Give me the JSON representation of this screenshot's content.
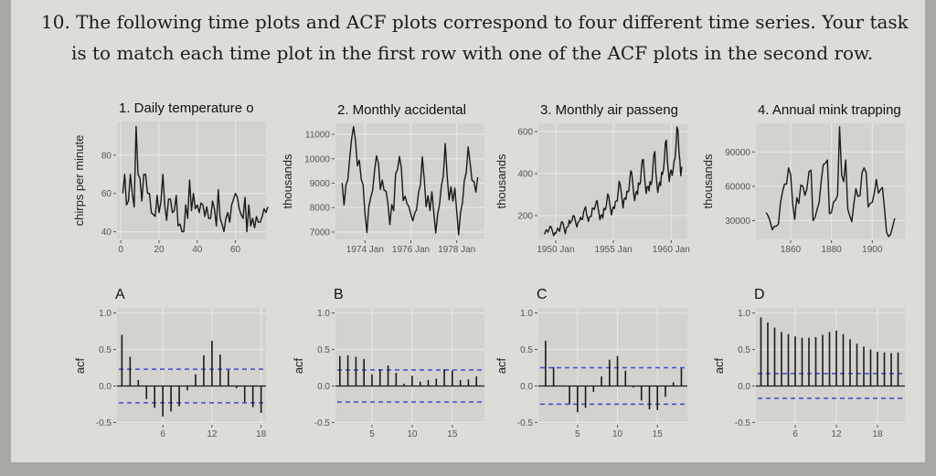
{
  "question": {
    "line1": "10. The following time plots and ACF plots correspond to four different time series. Your task",
    "line2": "is to match each time plot in the first row with one of the ACF plots in the second row."
  },
  "colors": {
    "panel": "#d3d2cd",
    "grid": "#e6e5e1",
    "line": "#1a1a1a",
    "ci": "#3b49d6"
  },
  "chart_data": [
    {
      "type": "line",
      "title": "1. Daily temperature o",
      "ylabel": "chirps per minute",
      "start": 1,
      "frequency": 1,
      "xlim": [
        -2,
        76
      ],
      "ylim": [
        36,
        97.6
      ],
      "xticks": [
        "0",
        "20",
        "40",
        "60"
      ],
      "yticks": [
        40,
        60,
        80
      ],
      "ytick_labels": [
        "40",
        "60",
        "80"
      ],
      "values": [
        60,
        70,
        54,
        56,
        70,
        60,
        53,
        95,
        70,
        68,
        56,
        70,
        70,
        60,
        60,
        50,
        49,
        48,
        59,
        50,
        56,
        70,
        54,
        46,
        57,
        57,
        50,
        51,
        59,
        43,
        44,
        40,
        40,
        54,
        47,
        67,
        51,
        60,
        52,
        54,
        50,
        55,
        54,
        48,
        53,
        47,
        47,
        56,
        52,
        43,
        62,
        47,
        44,
        40,
        47,
        50,
        45,
        54,
        57,
        60,
        58,
        52,
        49,
        47,
        58,
        40,
        54,
        43,
        47,
        42,
        48,
        45,
        45,
        48,
        52,
        50,
        53
      ]
    },
    {
      "type": "line",
      "title": "2. Monthly accidental",
      "ylabel": "thousands",
      "start": 1973,
      "frequency": 12,
      "xlim": [
        1972.71,
        1979.21
      ],
      "ylim": [
        6700,
        11450
      ],
      "xticks": [
        "1974 Jan",
        "1976 Jan",
        "1978 Jan"
      ],
      "yticks": [
        7000,
        8000,
        9000,
        10000,
        11000
      ],
      "ytick_labels": [
        "7000",
        "8000",
        "9000",
        "10000",
        "11000"
      ],
      "values": [
        9007,
        8106,
        8928,
        9137,
        10017,
        10826,
        11317,
        10744,
        9713,
        9938,
        9161,
        8927,
        7750,
        6981,
        8038,
        8422,
        8714,
        9512,
        10120,
        9823,
        8743,
        9129,
        8710,
        8680,
        8162,
        7306,
        8124,
        7870,
        9387,
        9556,
        10093,
        9620,
        8285,
        8466,
        8160,
        8034,
        7717,
        7461,
        7767,
        7925,
        8623,
        8945,
        10078,
        9179,
        8037,
        8488,
        7874,
        8647,
        7792,
        6957,
        7726,
        8106,
        8890,
        9299,
        10625,
        9302,
        8314,
        8850,
        8265,
        8796,
        7836,
        6892,
        7791,
        8192,
        9115,
        9434,
        10484,
        9827,
        9110,
        9070,
        8633,
        9240
      ]
    },
    {
      "type": "line",
      "title": "3. Monthly air passeng",
      "ylabel": "thousands",
      "start": 1949,
      "frequency": 12,
      "xlim": [
        1948.5,
        1961.4
      ],
      "ylim": [
        87,
        639
      ],
      "xticks": [
        "1950 Jan",
        "1955 Jan",
        "1960 Jan"
      ],
      "yticks": [
        200,
        400,
        600
      ],
      "ytick_labels": [
        "200",
        "400",
        "600"
      ],
      "values": [
        112,
        118,
        132,
        129,
        121,
        135,
        148,
        148,
        136,
        119,
        104,
        118,
        115,
        126,
        141,
        135,
        125,
        149,
        170,
        170,
        158,
        133,
        114,
        140,
        145,
        150,
        178,
        163,
        172,
        178,
        199,
        199,
        184,
        162,
        146,
        166,
        171,
        180,
        193,
        181,
        183,
        218,
        230,
        242,
        209,
        191,
        172,
        194,
        196,
        196,
        236,
        235,
        229,
        243,
        264,
        272,
        237,
        211,
        180,
        201,
        204,
        188,
        235,
        227,
        234,
        264,
        302,
        293,
        259,
        229,
        203,
        229,
        242,
        233,
        267,
        269,
        270,
        315,
        364,
        347,
        312,
        274,
        237,
        278,
        284,
        277,
        317,
        313,
        318,
        374,
        413,
        405,
        355,
        306,
        271,
        306,
        315,
        301,
        356,
        348,
        355,
        422,
        465,
        467,
        404,
        347,
        305,
        336,
        340,
        318,
        362,
        348,
        363,
        435,
        491,
        505,
        404,
        359,
        310,
        337,
        360,
        342,
        406,
        396,
        420,
        472,
        548,
        559,
        463,
        407,
        362,
        405,
        417,
        391,
        419,
        461,
        472,
        535,
        622,
        606,
        508,
        461,
        390,
        432
      ]
    },
    {
      "type": "line",
      "title": "4. Annual mink trapping",
      "ylabel": "thousands",
      "start": 1848,
      "frequency": 1,
      "xlim": [
        1843,
        1916
      ],
      "ylim": [
        13600,
        115000
      ],
      "xticks": [
        "1860",
        "1880",
        "1900"
      ],
      "yticks": [
        30000,
        60000,
        90000
      ],
      "ytick_labels": [
        "30000",
        "60000",
        "90000"
      ],
      "values": [
        37000,
        34000,
        29000,
        22000,
        25000,
        25000,
        27000,
        45000,
        55000,
        62000,
        62000,
        76000,
        70000,
        45000,
        31000,
        50000,
        45000,
        61000,
        60000,
        52000,
        58000,
        73000,
        74000,
        30000,
        33000,
        40000,
        46000,
        65000,
        79000,
        80000,
        83000,
        36000,
        37000,
        46000,
        48000,
        52000,
        112000,
        70000,
        64000,
        83000,
        40000,
        34000,
        29000,
        45000,
        58000,
        51000,
        52000,
        72000,
        76000,
        72000,
        42000,
        45000,
        46000,
        54000,
        66000,
        54000,
        57000,
        59000,
        40000,
        20000,
        16000,
        18000,
        25000,
        32000
      ]
    },
    {
      "type": "bar",
      "title": "A",
      "ylabel": "acf",
      "xlim": [
        0.4,
        18.6
      ],
      "ylim": [
        -0.52,
        1.07
      ],
      "xticks": [
        "6",
        "12",
        "18"
      ],
      "yticks": [
        -0.5,
        0,
        0.5,
        1
      ],
      "ytick_labels": [
        "-0.5",
        "0.0",
        "0.5",
        "1.0"
      ],
      "ci": 0.23,
      "values": [
        0.7,
        0.4,
        0.08,
        -0.18,
        -0.3,
        -0.42,
        -0.35,
        -0.28,
        -0.06,
        0.16,
        0.42,
        0.62,
        0.43,
        0.22,
        -0.03,
        -0.22,
        -0.29,
        -0.37
      ]
    },
    {
      "type": "bar",
      "title": "B",
      "ylabel": "acf",
      "xlim": [
        0.45,
        19
      ],
      "ylim": [
        -0.52,
        1.07
      ],
      "xticks": [
        "5",
        "10",
        "15"
      ],
      "yticks": [
        -0.5,
        0,
        0.5,
        1
      ],
      "ytick_labels": [
        "-0.5",
        "0.0",
        "0.5",
        "1.0"
      ],
      "ci": 0.22,
      "values": [
        0.41,
        0.42,
        0.4,
        0.37,
        0.16,
        0.23,
        0.28,
        0.18,
        0.03,
        0.14,
        0.06,
        0.08,
        0.1,
        0.23,
        0.21,
        0.08,
        0.09,
        0.13
      ]
    },
    {
      "type": "bar",
      "title": "C",
      "ylabel": "acf",
      "xlim": [
        0.1,
        18.75
      ],
      "ylim": [
        -0.52,
        1.07
      ],
      "xticks": [
        "5",
        "10",
        "15"
      ],
      "yticks": [
        -0.5,
        0,
        0.5,
        1
      ],
      "ytick_labels": [
        "-0.5",
        "0.0",
        "0.5",
        "1.0"
      ],
      "ci": 0.25,
      "values": [
        0.62,
        0.26,
        0.0,
        -0.25,
        -0.36,
        -0.3,
        -0.08,
        0.13,
        0.36,
        0.41,
        0.21,
        -0.02,
        -0.2,
        -0.32,
        -0.33,
        -0.15,
        0.05,
        0.24
      ]
    },
    {
      "type": "bar",
      "title": "D",
      "ylabel": "acf",
      "xlim": [
        0.27,
        22
      ],
      "ylim": [
        -0.52,
        1.07
      ],
      "xticks": [
        "6",
        "12",
        "18"
      ],
      "yticks": [
        -0.5,
        0,
        0.5,
        1
      ],
      "ytick_labels": [
        "-0.5",
        "0.0",
        "0.5",
        "1.0"
      ],
      "ci": 0.17,
      "values": [
        0.94,
        0.87,
        0.8,
        0.74,
        0.71,
        0.68,
        0.66,
        0.66,
        0.67,
        0.7,
        0.74,
        0.76,
        0.71,
        0.64,
        0.58,
        0.54,
        0.5,
        0.47,
        0.46,
        0.45,
        0.46
      ]
    }
  ]
}
